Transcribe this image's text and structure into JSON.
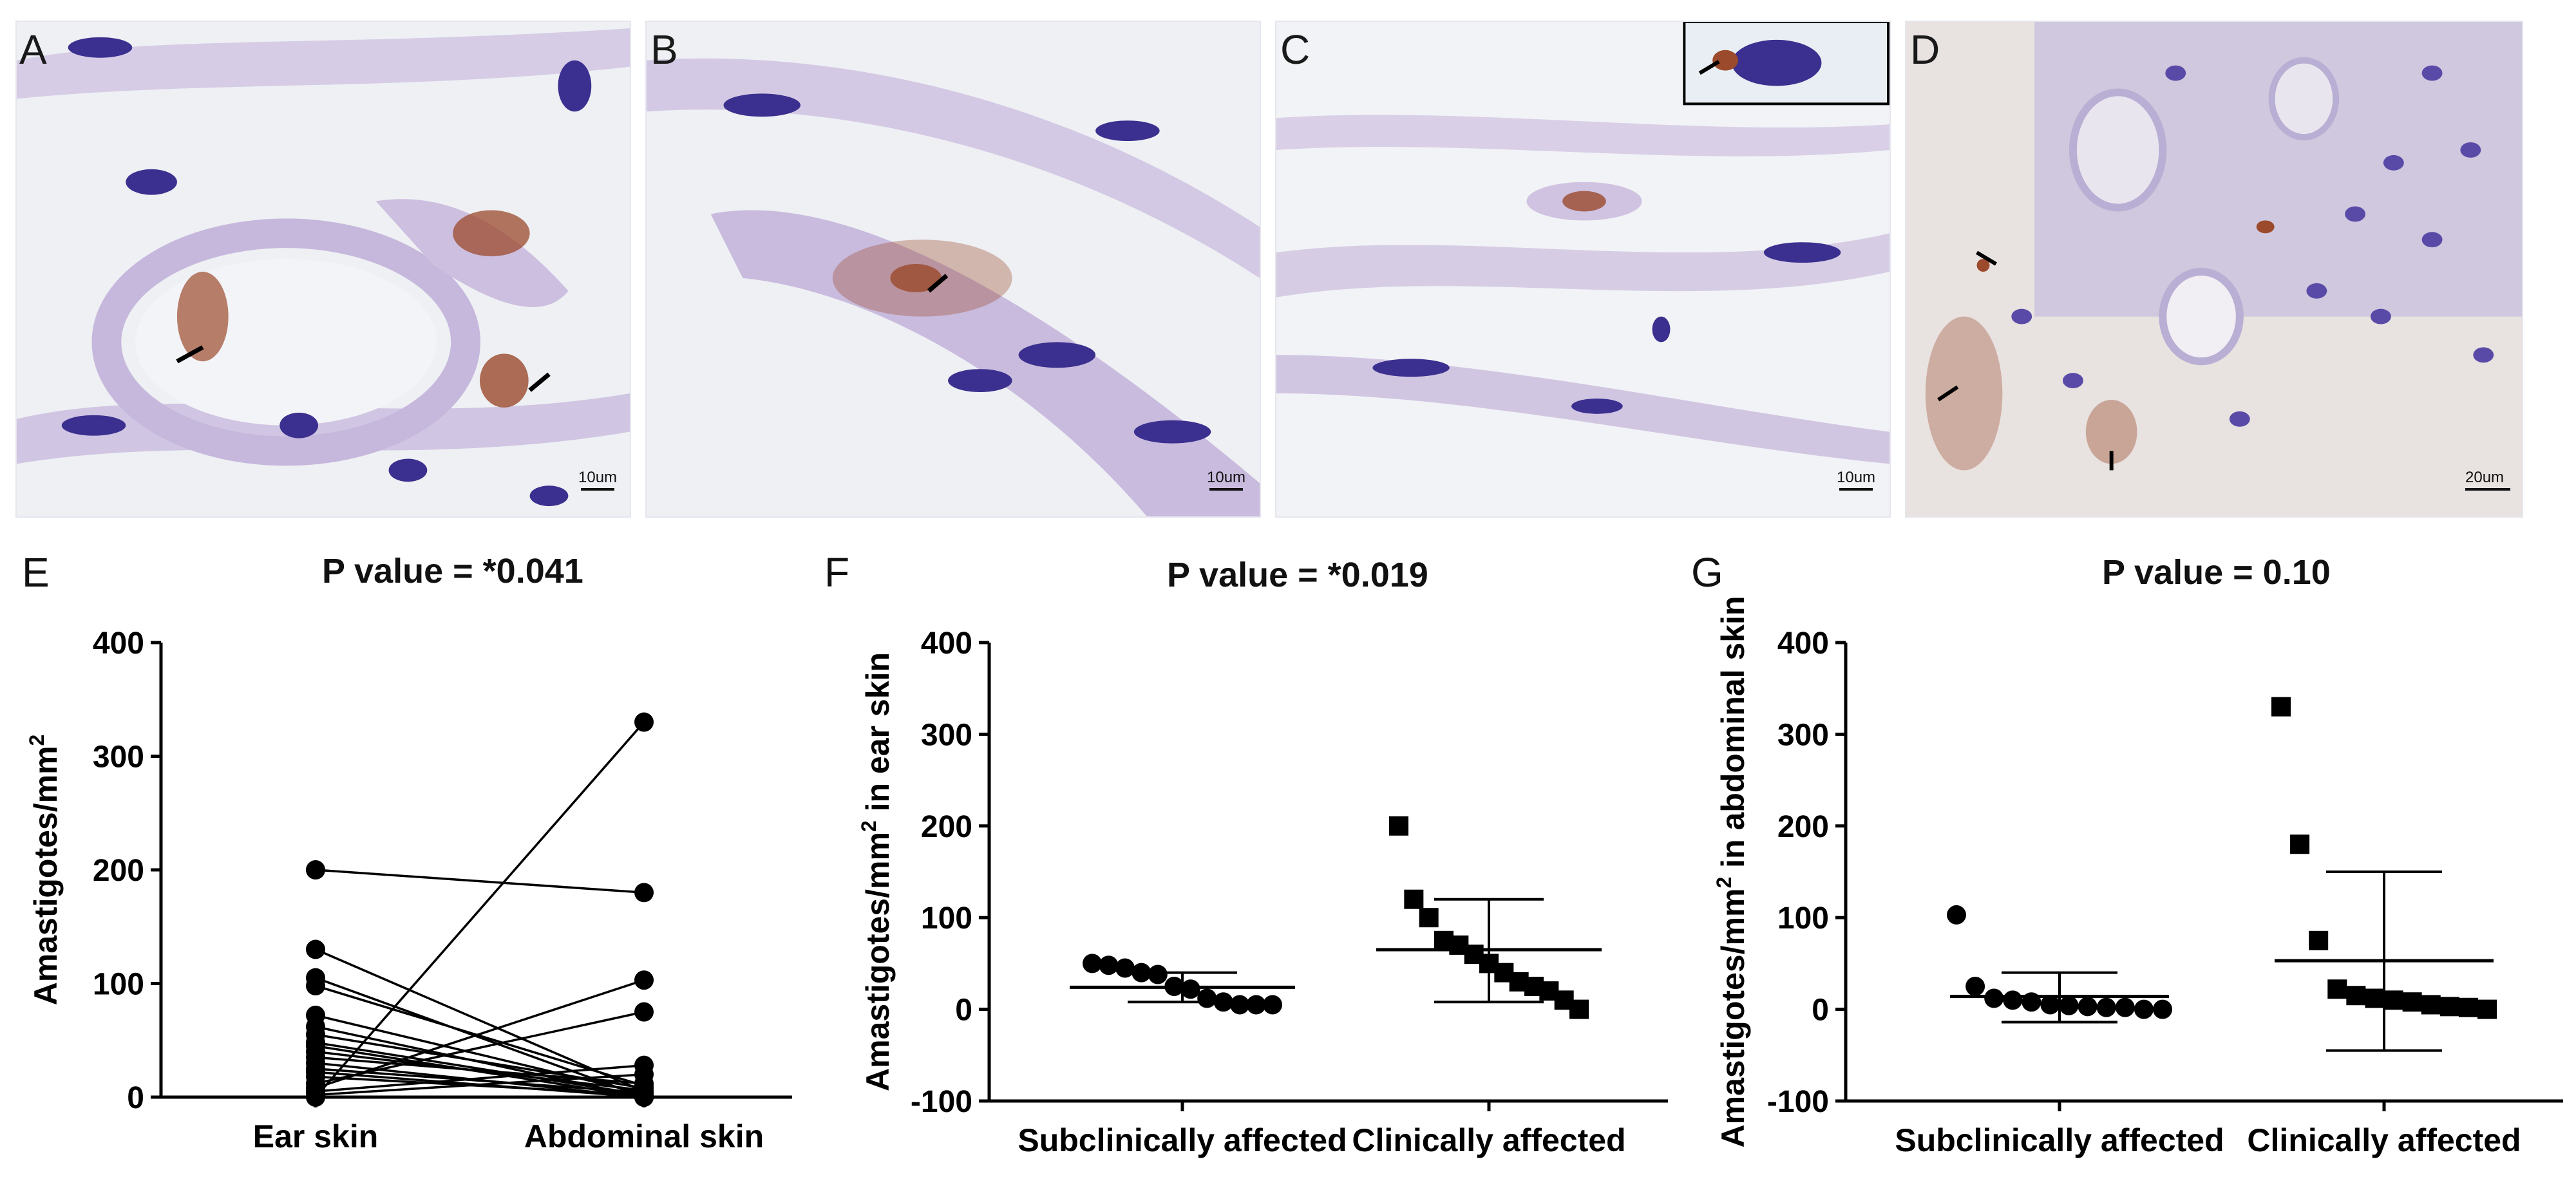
{
  "micrographs": [
    {
      "label": "A",
      "scale": "10um"
    },
    {
      "label": "B",
      "scale": "10um"
    },
    {
      "label": "C",
      "scale": "10um"
    },
    {
      "label": "D",
      "scale": "20um"
    }
  ],
  "colors": {
    "stain_background": "#eef0f4",
    "nucleus": "#3b2f8f",
    "collagen": "#c9bfdc",
    "amastigote": "#9b4a2c",
    "marker": "#000000"
  },
  "chart_data": [
    {
      "panel": "E",
      "type": "paired-line",
      "title": "P value = *0.041",
      "xlabel": "",
      "ylabel": "Amastigotes/mm²",
      "ylabel_parts": {
        "text": "Amastigotes/mm",
        "sup": "2",
        "suffix": ""
      },
      "categories": [
        "Ear skin",
        "Abdominal skin"
      ],
      "ylim": [
        0,
        400
      ],
      "yticks": [
        0,
        100,
        200,
        300,
        400
      ],
      "pairs": [
        [
          200,
          180
        ],
        [
          130,
          5
        ],
        [
          105,
          0
        ],
        [
          98,
          10
        ],
        [
          72,
          3
        ],
        [
          62,
          0
        ],
        [
          55,
          8
        ],
        [
          48,
          2
        ],
        [
          45,
          0
        ],
        [
          40,
          6
        ],
        [
          35,
          12
        ],
        [
          30,
          0
        ],
        [
          25,
          4
        ],
        [
          22,
          0
        ],
        [
          18,
          2
        ],
        [
          12,
          75
        ],
        [
          8,
          103
        ],
        [
          5,
          28
        ],
        [
          2,
          20
        ],
        [
          0,
          330
        ]
      ]
    },
    {
      "panel": "F",
      "type": "scatter",
      "title": "P value = *0.019",
      "ylabel": "Amastigotes/mm² in ear skin",
      "ylabel_parts": {
        "text": "Amastigotes/mm",
        "sup": "2",
        "suffix": " in ear skin"
      },
      "categories": [
        "Subclinically affected",
        "Clinically affected"
      ],
      "ylim": [
        -100,
        400
      ],
      "yticks": [
        -100,
        0,
        100,
        200,
        300,
        400
      ],
      "series": [
        {
          "name": "Subclinically affected",
          "marker": "circle",
          "values": [
            50,
            48,
            45,
            40,
            38,
            25,
            22,
            12,
            8,
            5,
            5,
            5
          ],
          "mean": 24,
          "sd_low": 8,
          "sd_high": 40
        },
        {
          "name": "Clinically affected",
          "marker": "square",
          "values": [
            200,
            120,
            100,
            75,
            70,
            60,
            50,
            40,
            30,
            25,
            20,
            10,
            0
          ],
          "mean": 65,
          "sd_low": 8,
          "sd_high": 120
        }
      ]
    },
    {
      "panel": "G",
      "type": "scatter",
      "title": "P value = 0.10",
      "ylabel": "Amastigotes/mm² in abdominal skin",
      "ylabel_parts": {
        "text": "Amastigotes/mm",
        "sup": "2",
        "suffix": " in abdominal skin"
      },
      "categories": [
        "Subclinically affected",
        "Clinically affected"
      ],
      "ylim": [
        -100,
        400
      ],
      "yticks": [
        -100,
        0,
        100,
        200,
        300,
        400
      ],
      "series": [
        {
          "name": "Subclinically affected",
          "marker": "circle",
          "values": [
            103,
            25,
            12,
            10,
            8,
            5,
            4,
            3,
            2,
            2,
            0,
            0
          ],
          "mean": 14,
          "sd_low": -14,
          "sd_high": 40
        },
        {
          "name": "Clinically affected",
          "marker": "square",
          "values": [
            330,
            180,
            75,
            22,
            15,
            12,
            10,
            8,
            5,
            3,
            2,
            0
          ],
          "mean": 53,
          "sd_low": -45,
          "sd_high": 150
        }
      ]
    }
  ]
}
